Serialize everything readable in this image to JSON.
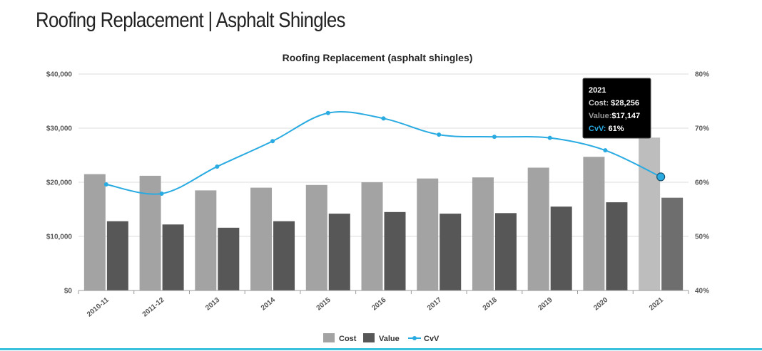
{
  "page": {
    "title": "Roofing Replacement | Asphalt Shingles"
  },
  "colors": {
    "cost": "#a3a3a3",
    "cost_highlight": "#bdbdbd",
    "value": "#575757",
    "value_highlight": "#6e6e6e",
    "cvv": "#29abe2",
    "accent_rule": "#39c0dc",
    "tooltip_bg": "#000000"
  },
  "chart_data": {
    "type": "bar",
    "title": "Roofing Replacement (asphalt shingles)",
    "categories": [
      "2010-11",
      "2011-12",
      "2013",
      "2014",
      "2015",
      "2016",
      "2017",
      "2018",
      "2019",
      "2020",
      "2021"
    ],
    "series": [
      {
        "name": "Cost",
        "type": "bar",
        "axis": "left",
        "values": [
          21500,
          21200,
          18500,
          19000,
          19500,
          20000,
          20700,
          20900,
          22700,
          24700,
          28256
        ]
      },
      {
        "name": "Value",
        "type": "bar",
        "axis": "left",
        "values": [
          12800,
          12200,
          11600,
          12800,
          14200,
          14500,
          14200,
          14300,
          15500,
          16300,
          17147
        ]
      },
      {
        "name": "CvV",
        "type": "line",
        "axis": "right",
        "values": [
          59.6,
          57.9,
          62.9,
          67.6,
          72.8,
          71.8,
          68.8,
          68.4,
          68.2,
          65.9,
          61.0
        ]
      }
    ],
    "yaxis_left": {
      "ylim": [
        0,
        40000
      ],
      "ticks": [
        "$0",
        "$10,000",
        "$20,000",
        "$30,000",
        "$40,000"
      ]
    },
    "yaxis_right": {
      "ylim": [
        40,
        80
      ],
      "ticks": [
        "40%",
        "50%",
        "60%",
        "70%",
        "80%"
      ]
    },
    "grid": true,
    "legend": {
      "position": "bottom",
      "items": [
        "Cost",
        "Value",
        "CvV"
      ]
    },
    "tooltip": {
      "category": "2021",
      "title": "2021",
      "cost_label": "Cost:",
      "cost_value": "$28,256",
      "value_label": "Value:",
      "value_value": "$17,147",
      "cvv_label": "CvV:",
      "cvv_value": "61%"
    }
  }
}
